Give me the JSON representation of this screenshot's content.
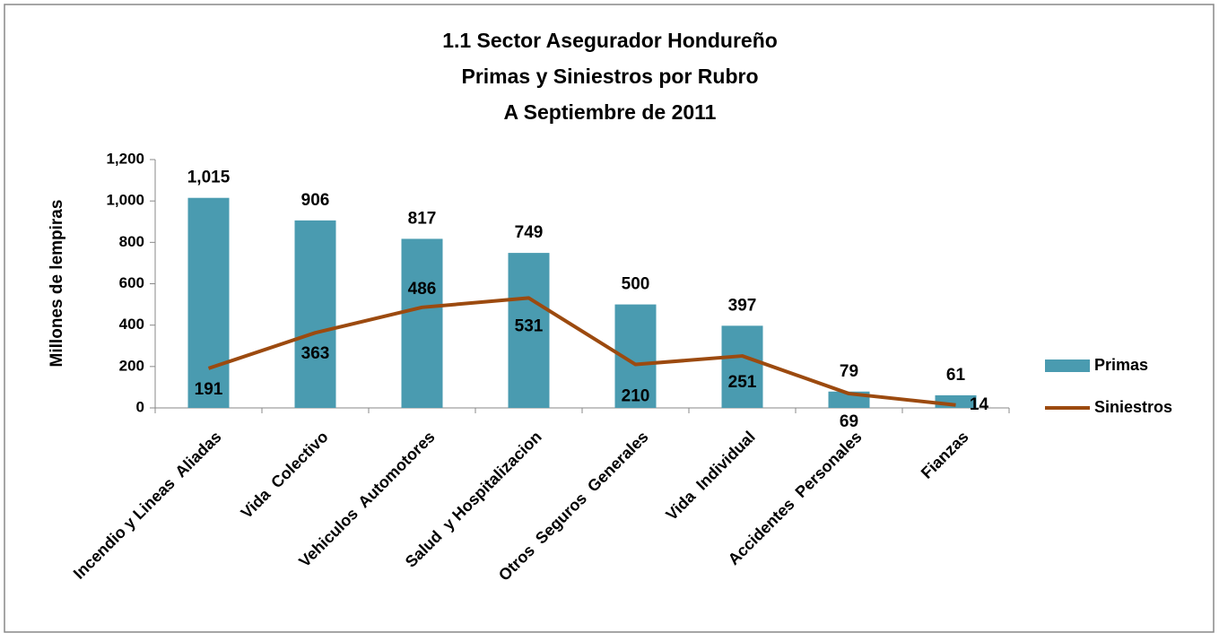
{
  "chart_data": {
    "type": "bar_line",
    "title": [
      "1.1 Sector Asegurador Hondureño",
      "Primas y Siniestros por Rubro",
      "A Septiembre de 2011"
    ],
    "y_label": "Millones de lempiras",
    "categories": [
      "Incendio y Lineas  Aliadas",
      "Vida  Colectivo",
      "Vehiculos  Automotores",
      "Salud  y Hospitalizacion",
      "Otros  Seguros  Generales",
      "Vida  Individual",
      "Accidentes  Personales",
      "Fianzas"
    ],
    "series": [
      {
        "name": "Primas",
        "type": "bar",
        "color": "#4a9bb0",
        "values": [
          1015,
          906,
          817,
          749,
          500,
          397,
          79,
          61
        ],
        "value_labels": [
          "1,015",
          "906",
          "817",
          "749",
          "500",
          "397",
          "79",
          "61"
        ]
      },
      {
        "name": "Siniestros",
        "type": "line",
        "color": "#9c4a0f",
        "values": [
          191,
          363,
          486,
          531,
          210,
          251,
          69,
          14
        ]
      }
    ],
    "ylim": [
      0,
      1200
    ],
    "yticks": [
      0,
      200,
      400,
      600,
      800,
      {
        "value": 1000,
        "label": "1,000"
      },
      {
        "value": 1200,
        "label": "1,200"
      }
    ],
    "legend": "right"
  }
}
